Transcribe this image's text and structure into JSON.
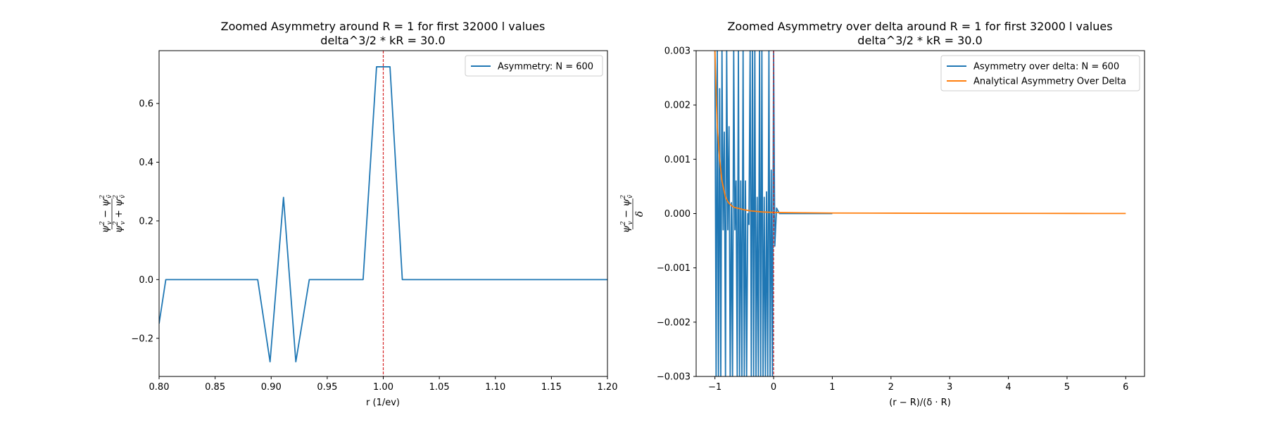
{
  "chart_data": [
    {
      "type": "line",
      "title": "Zoomed Asymmetry around R = 1 for first 32000 l values",
      "subtitle": "delta^3/2 * kR = 30.0",
      "xlabel": "r (1/ev)",
      "ylabel": "ψv² − ψv̄² / ψv² + ψv̄²",
      "xlim": [
        0.8,
        1.2
      ],
      "ylim": [
        -0.33,
        0.78
      ],
      "xticks": [
        0.8,
        0.85,
        0.9,
        0.95,
        1.0,
        1.05,
        1.1,
        1.15,
        1.2
      ],
      "xtick_labels": [
        "0.80",
        "0.85",
        "0.90",
        "0.95",
        "1.00",
        "1.05",
        "1.10",
        "1.15",
        "1.20"
      ],
      "yticks": [
        -0.2,
        0.0,
        0.2,
        0.4,
        0.6
      ],
      "ytick_labels": [
        "−0.2",
        "0.0",
        "0.2",
        "0.4",
        "0.6"
      ],
      "legend_position": "upper-right",
      "vline": {
        "x": 1.0,
        "color": "#d62728",
        "style": "dashed"
      },
      "series": [
        {
          "name": "Asymmetry: N = 600",
          "color": "#1f77b4",
          "x": [
            0.8,
            0.806,
            0.888,
            0.899,
            0.911,
            0.922,
            0.934,
            0.982,
            0.994,
            1.006,
            1.017,
            1.2
          ],
          "y": [
            -0.15,
            0.0,
            0.0,
            -0.28,
            0.28,
            -0.28,
            0.0,
            0.0,
            0.725,
            0.725,
            0.0,
            0.0
          ]
        }
      ]
    },
    {
      "type": "line",
      "title": "Zoomed Asymmetry over delta around R = 1 for first 32000 l values",
      "subtitle": "delta^3/2 * kR = 30.0",
      "xlabel": "(r − R)/(δ · R)",
      "ylabel": "ψv² − ψv̄² / δ",
      "xlim": [
        -1.32,
        6.32
      ],
      "ylim": [
        -0.003,
        0.003
      ],
      "xticks": [
        -1,
        0,
        1,
        2,
        3,
        4,
        5,
        6
      ],
      "xtick_labels": [
        "−1",
        "0",
        "1",
        "2",
        "3",
        "4",
        "5",
        "6"
      ],
      "yticks": [
        -0.003,
        -0.002,
        -0.001,
        0.0,
        0.001,
        0.002,
        0.003
      ],
      "ytick_labels": [
        "−0.003",
        "−0.002",
        "−0.001",
        "0.000",
        "0.001",
        "0.002",
        "0.003"
      ],
      "legend_position": "upper-right",
      "vline": {
        "x": 0.0,
        "color": "#d62728",
        "style": "dashed"
      },
      "series": [
        {
          "name": "Asymmetry over delta: N = 600",
          "color": "#1f77b4",
          "x": [
            -1.0,
            -0.98,
            -0.96,
            -0.94,
            -0.92,
            -0.9,
            -0.88,
            -0.86,
            -0.84,
            -0.82,
            -0.8,
            -0.78,
            -0.76,
            -0.74,
            -0.72,
            -0.7,
            -0.68,
            -0.66,
            -0.64,
            -0.62,
            -0.6,
            -0.58,
            -0.56,
            -0.54,
            -0.52,
            -0.5,
            -0.48,
            -0.46,
            -0.44,
            -0.42,
            -0.4,
            -0.38,
            -0.36,
            -0.34,
            -0.32,
            -0.3,
            -0.28,
            -0.26,
            -0.24,
            -0.22,
            -0.2,
            -0.18,
            -0.16,
            -0.14,
            -0.12,
            -0.1,
            -0.08,
            -0.06,
            -0.04,
            -0.02,
            0.0,
            0.02,
            0.05,
            0.1,
            0.5,
            1.0
          ],
          "y": [
            0.003,
            -0.003,
            0.003,
            -0.003,
            0.0023,
            -0.003,
            0.003,
            -0.0003,
            0.0015,
            -0.003,
            0.003,
            -0.0003,
            0.0016,
            -0.003,
            0.0002,
            -0.003,
            0.003,
            -0.0003,
            0.0006,
            -0.003,
            0.003,
            -0.003,
            0.0006,
            -0.003,
            0.003,
            -0.003,
            0.0006,
            -0.003,
            0.0,
            -0.0002,
            0.003,
            -0.003,
            0.003,
            -0.003,
            0.003,
            -0.003,
            0.0003,
            -0.003,
            0.003,
            -0.003,
            0.003,
            -0.003,
            0.0003,
            -0.003,
            0.0004,
            -0.003,
            0.003,
            -0.003,
            0.0008,
            -0.003,
            0.003,
            -0.0006,
            0.0001,
            0.0,
            0.0,
            0.0
          ]
        },
        {
          "name": "Analytical Asymmetry Over Delta",
          "color": "#ff7f0e",
          "x": [
            -1.0,
            -0.98,
            -0.96,
            -0.94,
            -0.92,
            -0.9,
            -0.88,
            -0.86,
            -0.84,
            -0.82,
            -0.8,
            -0.78,
            -0.76,
            -0.74,
            -0.72,
            -0.7,
            -0.66,
            -0.62,
            -0.58,
            -0.54,
            -0.5,
            -0.45,
            -0.4,
            -0.35,
            -0.3,
            -0.25,
            -0.2,
            -0.1,
            0.0,
            0.5,
            1.0,
            1.7,
            2.5,
            3.5,
            4.5,
            5.5,
            6.0
          ],
          "y": [
            0.003,
            0.0022,
            0.0016,
            0.0013,
            0.001,
            0.0008,
            0.0006,
            0.0005,
            0.0004,
            0.0003,
            0.00026,
            0.00022,
            0.00019,
            0.00017,
            0.00015,
            0.00013,
            0.00011,
            0.0001,
            9e-05,
            8e-05,
            7e-05,
            6e-05,
            5e-05,
            4.5e-05,
            4e-05,
            3.5e-05,
            3e-05,
            2.5e-05,
            2e-05,
            1.5e-05,
            1e-05,
            8e-06,
            6e-06,
            4e-06,
            3e-06,
            2e-06,
            2e-06
          ]
        }
      ]
    }
  ]
}
